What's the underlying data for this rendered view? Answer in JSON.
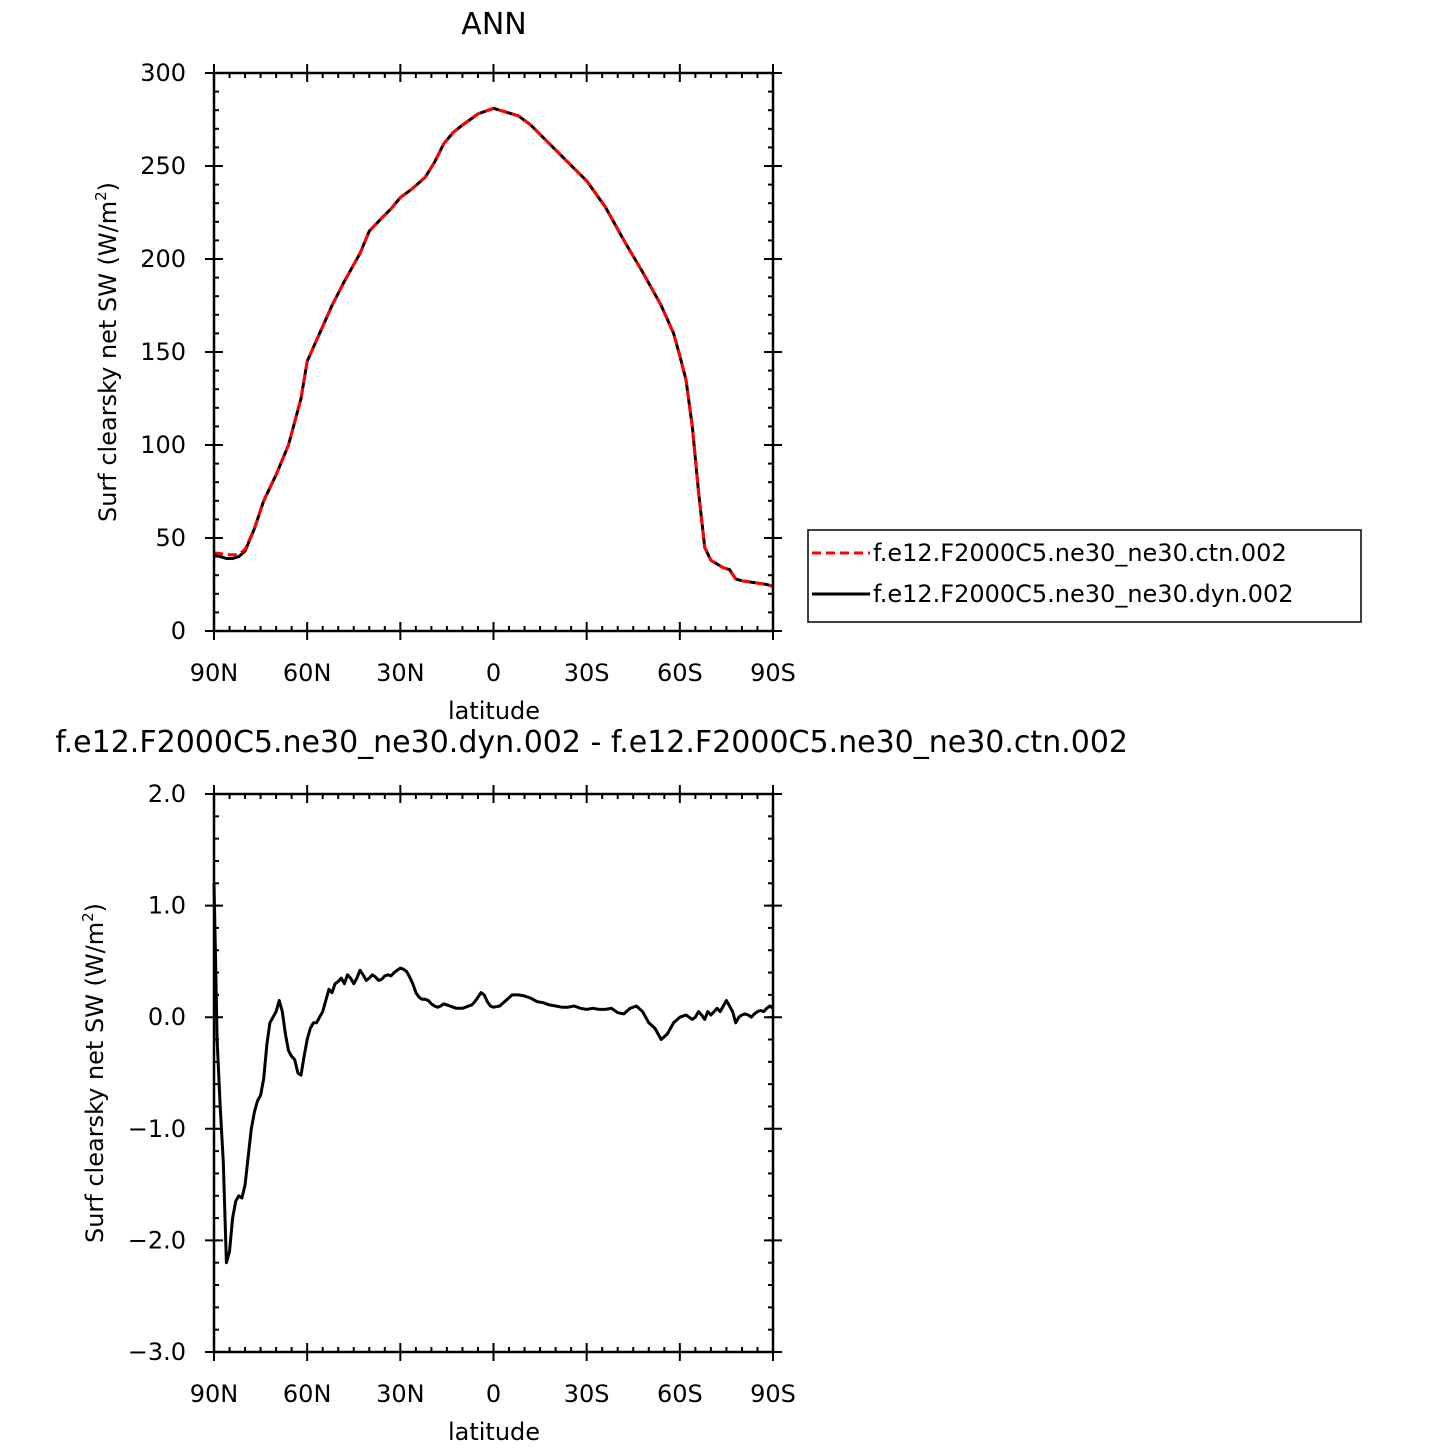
{
  "chart_data": [
    {
      "type": "line",
      "title": "ANN",
      "xlabel": "latitude",
      "ylabel": "Surf clearsky net SW (W/m²)",
      "ylabel_main": "Surf clearsky net SW (W/m",
      "ylabel_sup": "2",
      "ylabel_close": ")",
      "xlim": [
        90,
        -90
      ],
      "ylim": [
        0,
        300
      ],
      "x_ticks": [
        {
          "value": 90,
          "label": "90N"
        },
        {
          "value": 60,
          "label": "60N"
        },
        {
          "value": 30,
          "label": "30N"
        },
        {
          "value": 0,
          "label": "0"
        },
        {
          "value": -30,
          "label": "30S"
        },
        {
          "value": -60,
          "label": "60S"
        },
        {
          "value": -90,
          "label": "90S"
        }
      ],
      "y_ticks": [
        {
          "value": 0,
          "label": "0"
        },
        {
          "value": 50,
          "label": "50"
        },
        {
          "value": 100,
          "label": "100"
        },
        {
          "value": 150,
          "label": "150"
        },
        {
          "value": 200,
          "label": "200"
        },
        {
          "value": 250,
          "label": "250"
        },
        {
          "value": 300,
          "label": "300"
        }
      ],
      "legend": "right",
      "series": [
        {
          "name": "f.e12.F2000C5.ne30_ne30.ctn.002",
          "color": "#ff0000",
          "style": "dashed",
          "x": [
            90,
            85,
            82,
            80,
            77,
            74,
            70,
            66,
            62,
            60,
            56,
            52,
            48,
            43,
            40,
            36,
            33,
            30,
            26,
            22,
            19,
            16,
            13,
            10,
            5,
            0,
            -4,
            -8,
            -12,
            -18,
            -24,
            -30,
            -36,
            -42,
            -48,
            -54,
            -58,
            -60,
            -62,
            -64,
            -66,
            -68,
            -70,
            -72,
            -74,
            -76,
            -78,
            -80,
            -84,
            -88,
            -90
          ],
          "values": [
            42,
            41,
            41,
            44,
            55,
            70,
            84,
            100,
            125,
            145,
            160,
            175,
            188,
            203,
            215,
            222,
            227,
            233,
            238,
            244,
            252,
            262,
            268,
            272,
            278,
            281,
            279,
            277,
            272,
            262,
            252,
            242,
            228,
            210,
            193,
            175,
            160,
            148,
            135,
            110,
            75,
            45,
            38,
            36,
            34,
            33,
            28,
            27,
            26,
            25,
            24
          ]
        },
        {
          "name": "f.e12.F2000C5.ne30_ne30.dyn.002",
          "color": "#000000",
          "style": "solid",
          "x": [
            90,
            88,
            86,
            84,
            82,
            80,
            77,
            74,
            70,
            66,
            62,
            60,
            56,
            52,
            48,
            43,
            40,
            36,
            33,
            30,
            26,
            22,
            19,
            16,
            13,
            10,
            5,
            0,
            -4,
            -8,
            -12,
            -18,
            -24,
            -30,
            -36,
            -42,
            -48,
            -54,
            -58,
            -60,
            -62,
            -64,
            -66,
            -68,
            -70,
            -72,
            -74,
            -76,
            -78,
            -80,
            -84,
            -88,
            -90
          ],
          "values": [
            42,
            40,
            39,
            39,
            40,
            43,
            55,
            70,
            84,
            100,
            125,
            145,
            160,
            175,
            188,
            203,
            215,
            222,
            227,
            233,
            238,
            244,
            252,
            262,
            268,
            272,
            278,
            281,
            279,
            277,
            272,
            262,
            252,
            242,
            228,
            210,
            193,
            175,
            160,
            148,
            135,
            110,
            75,
            45,
            38,
            36,
            34,
            33,
            28,
            27,
            26,
            25,
            24
          ]
        }
      ]
    },
    {
      "type": "line",
      "title": "f.e12.F2000C5.ne30_ne30.dyn.002 - f.e12.F2000C5.ne30_ne30.ctn.002",
      "xlabel": "latitude",
      "ylabel": "Surf clearsky net SW (W/m²)",
      "ylabel_main": "Surf clearsky net SW (W/m",
      "ylabel_sup": "2",
      "ylabel_close": ")",
      "xlim": [
        90,
        -90
      ],
      "ylim": [
        -3.0,
        2.0
      ],
      "x_ticks": [
        {
          "value": 90,
          "label": "90N"
        },
        {
          "value": 60,
          "label": "60N"
        },
        {
          "value": 30,
          "label": "30N"
        },
        {
          "value": 0,
          "label": "0"
        },
        {
          "value": -30,
          "label": "30S"
        },
        {
          "value": -60,
          "label": "60S"
        },
        {
          "value": -90,
          "label": "90S"
        }
      ],
      "y_ticks": [
        {
          "value": -3.0,
          "label": "−3.0"
        },
        {
          "value": -2.0,
          "label": "−2.0"
        },
        {
          "value": -1.0,
          "label": "−1.0"
        },
        {
          "value": 0.0,
          "label": "0.0"
        },
        {
          "value": 1.0,
          "label": "1.0"
        },
        {
          "value": 2.0,
          "label": "2.0"
        }
      ],
      "series": [
        {
          "color": "#000000",
          "style": "solid",
          "x": [
            90,
            89.5,
            89,
            88,
            87,
            86,
            85,
            84,
            83,
            82,
            81,
            80,
            79,
            78,
            77,
            76,
            75,
            74,
            73,
            72,
            71,
            70,
            69,
            68,
            67,
            66,
            65,
            64,
            63,
            62,
            61,
            60,
            59,
            58,
            57,
            56,
            55,
            54,
            53,
            52,
            51,
            50,
            49,
            48,
            47,
            46,
            45,
            44,
            43,
            42,
            41,
            40,
            39,
            38,
            37,
            36,
            35,
            34,
            33,
            32,
            31,
            30,
            29,
            28,
            27,
            26,
            25,
            24,
            23,
            22,
            21,
            20,
            19,
            18,
            17,
            16,
            15,
            14,
            13,
            12,
            11,
            10,
            9,
            8,
            7,
            6,
            5,
            4,
            3,
            2,
            1,
            0,
            -2,
            -4,
            -6,
            -8,
            -10,
            -12,
            -14,
            -16,
            -18,
            -20,
            -22,
            -24,
            -26,
            -28,
            -30,
            -32,
            -34,
            -36,
            -38,
            -40,
            -42,
            -44,
            -46,
            -48,
            -50,
            -52,
            -54,
            -56,
            -58,
            -60,
            -62,
            -63,
            -64,
            -65,
            -66,
            -67,
            -68,
            -69,
            -70,
            -71,
            -72,
            -73,
            -74,
            -75,
            -76,
            -77,
            -78,
            -79,
            -80,
            -81,
            -82,
            -83,
            -84,
            -85,
            -86,
            -87,
            -88,
            -89,
            -90
          ],
          "values": [
            1.2,
            0.5,
            -0.2,
            -0.8,
            -1.3,
            -2.2,
            -2.1,
            -1.8,
            -1.65,
            -1.6,
            -1.62,
            -1.5,
            -1.25,
            -1.0,
            -0.85,
            -0.75,
            -0.7,
            -0.55,
            -0.25,
            -0.05,
            0.0,
            0.05,
            0.15,
            0.05,
            -0.15,
            -0.3,
            -0.35,
            -0.38,
            -0.5,
            -0.52,
            -0.35,
            -0.2,
            -0.1,
            -0.05,
            -0.05,
            0.0,
            0.05,
            0.15,
            0.25,
            0.22,
            0.3,
            0.32,
            0.35,
            0.3,
            0.38,
            0.35,
            0.3,
            0.35,
            0.42,
            0.38,
            0.33,
            0.35,
            0.38,
            0.36,
            0.33,
            0.34,
            0.37,
            0.38,
            0.37,
            0.4,
            0.42,
            0.44,
            0.43,
            0.41,
            0.36,
            0.3,
            0.22,
            0.18,
            0.16,
            0.16,
            0.15,
            0.12,
            0.1,
            0.09,
            0.1,
            0.12,
            0.11,
            0.1,
            0.09,
            0.08,
            0.08,
            0.08,
            0.09,
            0.1,
            0.11,
            0.14,
            0.18,
            0.22,
            0.2,
            0.14,
            0.1,
            0.09,
            0.1,
            0.15,
            0.2,
            0.2,
            0.19,
            0.17,
            0.14,
            0.13,
            0.11,
            0.1,
            0.09,
            0.09,
            0.1,
            0.08,
            0.07,
            0.08,
            0.07,
            0.07,
            0.08,
            0.04,
            0.03,
            0.08,
            0.1,
            0.05,
            -0.05,
            -0.1,
            -0.2,
            -0.15,
            -0.05,
            0.0,
            0.02,
            0.0,
            -0.02,
            0.0,
            0.05,
            0.02,
            -0.02,
            0.05,
            0.02,
            0.05,
            0.08,
            0.05,
            0.1,
            0.15,
            0.1,
            0.05,
            -0.05,
            0.0,
            0.02,
            0.03,
            0.02,
            0.0,
            0.03,
            0.05,
            0.06,
            0.05,
            0.08,
            0.1,
            0.08
          ]
        }
      ]
    }
  ]
}
